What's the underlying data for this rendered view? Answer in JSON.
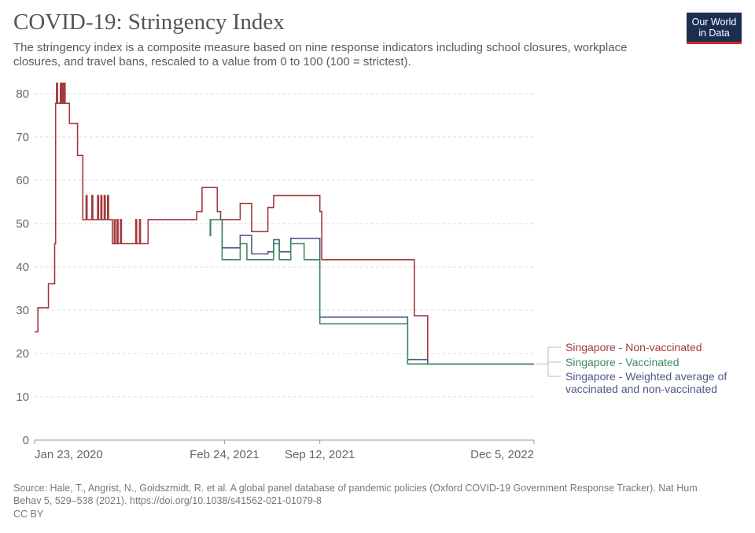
{
  "header": {
    "title": "COVID-19: Stringency Index",
    "subtitle": "The stringency index is a composite measure based on nine response indicators including school closures, workplace closures, and travel bans, rescaled to a value from 0 to 100 (100 = strictest).",
    "logo_line1": "Our World",
    "logo_line2": "in Data",
    "logo_bg": "#1a2e52",
    "logo_accent": "#d42b21"
  },
  "footer": {
    "source": "Source: Hale, T., Angrist, N., Goldszmidt, R. et al. A global panel database of pandemic policies (Oxford COVID-19 Government Response Tracker). Nat Hum Behav 5, 529–538 (2021). https://doi.org/10.1038/s41562-021-01079-8",
    "license": "CC BY"
  },
  "chart_data": {
    "type": "line",
    "title": "COVID-19: Stringency Index",
    "xlabel": "",
    "ylabel": "",
    "xlim": [
      "2020-01-23",
      "2022-12-05"
    ],
    "ylim": [
      0,
      80
    ],
    "yticks": [
      0,
      10,
      20,
      30,
      40,
      50,
      60,
      70,
      80
    ],
    "xticks": [
      {
        "date": "2020-01-23",
        "label": "Jan 23, 2020"
      },
      {
        "date": "2021-02-24",
        "label": "Feb 24, 2021"
      },
      {
        "date": "2021-09-12",
        "label": "Sep 12, 2021"
      },
      {
        "date": "2022-12-05",
        "label": "Dec 5, 2022"
      }
    ],
    "grid": "horizontal dashed",
    "legend_position": "right",
    "series": [
      {
        "name": "Singapore - Non-vaccinated",
        "color": "#a2393e",
        "points": [
          [
            "2020-01-23",
            25
          ],
          [
            "2020-01-30",
            30.56
          ],
          [
            "2020-02-21",
            36.11
          ],
          [
            "2020-03-05",
            45.37
          ],
          [
            "2020-03-07",
            77.78
          ],
          [
            "2020-03-09",
            82.41
          ],
          [
            "2020-03-11",
            77.78
          ],
          [
            "2020-03-17",
            82.41
          ],
          [
            "2020-03-19",
            77.78
          ],
          [
            "2020-03-21",
            82.41
          ],
          [
            "2020-03-23",
            77.78
          ],
          [
            "2020-03-25",
            82.41
          ],
          [
            "2020-03-27",
            77.78
          ],
          [
            "2020-04-05",
            73.15
          ],
          [
            "2020-04-22",
            65.74
          ],
          [
            "2020-05-03",
            50.93
          ],
          [
            "2020-05-10",
            56.48
          ],
          [
            "2020-05-12",
            50.93
          ],
          [
            "2020-05-22",
            56.48
          ],
          [
            "2020-05-24",
            50.93
          ],
          [
            "2020-06-03",
            56.48
          ],
          [
            "2020-06-05",
            50.93
          ],
          [
            "2020-06-10",
            56.48
          ],
          [
            "2020-06-12",
            50.93
          ],
          [
            "2020-06-17",
            56.48
          ],
          [
            "2020-06-19",
            50.93
          ],
          [
            "2020-06-24",
            56.48
          ],
          [
            "2020-06-26",
            50.93
          ],
          [
            "2020-07-04",
            45.37
          ],
          [
            "2020-07-08",
            50.93
          ],
          [
            "2020-07-10",
            45.37
          ],
          [
            "2020-07-14",
            50.93
          ],
          [
            "2020-07-16",
            45.37
          ],
          [
            "2020-07-21",
            50.93
          ],
          [
            "2020-07-23",
            45.37
          ],
          [
            "2020-08-22",
            50.93
          ],
          [
            "2020-08-24",
            45.37
          ],
          [
            "2020-08-30",
            50.93
          ],
          [
            "2020-09-01",
            45.37
          ],
          [
            "2020-09-17",
            50.93
          ],
          [
            "2020-12-28",
            52.78
          ],
          [
            "2021-01-08",
            58.33
          ],
          [
            "2021-02-09",
            52.78
          ],
          [
            "2021-02-16",
            50.93
          ],
          [
            "2021-03-29",
            54.63
          ],
          [
            "2021-04-22",
            48.15
          ],
          [
            "2021-05-26",
            53.7
          ],
          [
            "2021-06-07",
            56.48
          ],
          [
            "2021-09-12",
            52.78
          ],
          [
            "2021-09-16",
            41.67
          ],
          [
            "2022-03-29",
            28.7
          ],
          [
            "2022-04-26",
            17.59
          ],
          [
            "2022-12-05",
            17.59
          ]
        ]
      },
      {
        "name": "Singapore - Vaccinated",
        "color": "#3c8a5f",
        "points": [
          [
            "2021-01-24",
            50.93
          ],
          [
            "2021-01-25",
            47.22
          ],
          [
            "2021-01-26",
            50.93
          ],
          [
            "2021-02-16",
            50.93
          ],
          [
            "2021-02-19",
            41.67
          ],
          [
            "2021-03-29",
            45.37
          ],
          [
            "2021-04-12",
            41.67
          ],
          [
            "2021-06-07",
            45.37
          ],
          [
            "2021-06-19",
            41.67
          ],
          [
            "2021-07-13",
            45.37
          ],
          [
            "2021-08-10",
            41.67
          ],
          [
            "2021-09-12",
            26.85
          ],
          [
            "2022-03-15",
            17.59
          ],
          [
            "2022-12-05",
            17.59
          ]
        ]
      },
      {
        "name": "Singapore - Weighted average of vaccinated and non-vaccinated",
        "color": "#4c5a85",
        "points": [
          [
            "2021-02-16",
            50.93
          ],
          [
            "2021-02-19",
            44.4
          ],
          [
            "2021-03-29",
            47.3
          ],
          [
            "2021-04-22",
            43.0
          ],
          [
            "2021-05-26",
            43.5
          ],
          [
            "2021-06-07",
            46.3
          ],
          [
            "2021-06-19",
            43.5
          ],
          [
            "2021-07-13",
            46.6
          ],
          [
            "2021-09-12",
            28.4
          ],
          [
            "2022-03-15",
            18.6
          ],
          [
            "2022-04-26",
            17.59
          ],
          [
            "2022-12-05",
            17.59
          ]
        ]
      }
    ],
    "legend": [
      {
        "line1": "Singapore - Non-vaccinated",
        "line2": "",
        "color": "#a2393e"
      },
      {
        "line1": "Singapore - Vaccinated",
        "line2": "",
        "color": "#3c8a5f"
      },
      {
        "line1": "Singapore - Weighted average of",
        "line2": "vaccinated and non-vaccinated",
        "color": "#4c5a85"
      }
    ]
  }
}
